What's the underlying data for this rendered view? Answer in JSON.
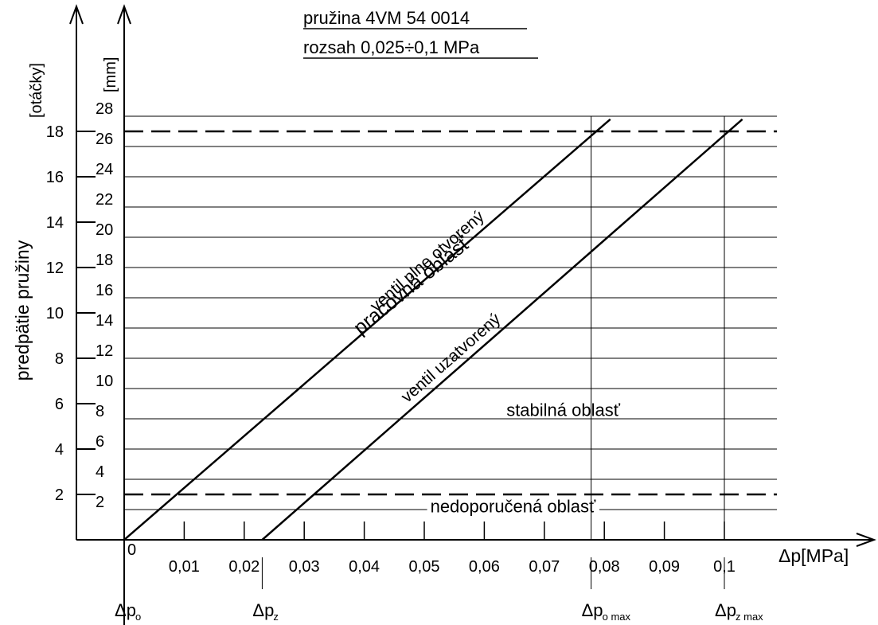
{
  "chart_data": {
    "type": "line",
    "title_lines": [
      "pružina 4VM 54 0014",
      "rozsah 0,025÷0,1 MPa"
    ],
    "xlabel": "Δp[MPa]",
    "ylabel": "predpätie pružiny",
    "y_left_unit": "[otáčky]",
    "y_mm_unit": "[mm]",
    "xlim": [
      0,
      0.1
    ],
    "x_ticks": [
      {
        "value": 0,
        "label": "0"
      },
      {
        "value": 0.01,
        "label": "0,01"
      },
      {
        "value": 0.02,
        "label": "0,02"
      },
      {
        "value": 0.03,
        "label": "0,03"
      },
      {
        "value": 0.04,
        "label": "0,04"
      },
      {
        "value": 0.05,
        "label": "0,05"
      },
      {
        "value": 0.06,
        "label": "0,06"
      },
      {
        "value": 0.07,
        "label": "0,07"
      },
      {
        "value": 0.08,
        "label": "0,08"
      },
      {
        "value": 0.09,
        "label": "0,09"
      },
      {
        "value": 0.1,
        "label": "0,1"
      }
    ],
    "y_otacky_ticks": [
      {
        "value": 2,
        "label": "2"
      },
      {
        "value": 4,
        "label": "4"
      },
      {
        "value": 6,
        "label": "6"
      },
      {
        "value": 8,
        "label": "8"
      },
      {
        "value": 10,
        "label": "10"
      },
      {
        "value": 12,
        "label": "12"
      },
      {
        "value": 14,
        "label": "14"
      },
      {
        "value": 16,
        "label": "16"
      },
      {
        "value": 18,
        "label": "18"
      }
    ],
    "y_mm_ticks": [
      {
        "value": 2,
        "label": "2"
      },
      {
        "value": 4,
        "label": "4"
      },
      {
        "value": 6,
        "label": "6"
      },
      {
        "value": 8,
        "label": "8"
      },
      {
        "value": 10,
        "label": "10"
      },
      {
        "value": 12,
        "label": "12"
      },
      {
        "value": 14,
        "label": "14"
      },
      {
        "value": 16,
        "label": "16"
      },
      {
        "value": 18,
        "label": "18"
      },
      {
        "value": 20,
        "label": "20"
      },
      {
        "value": 22,
        "label": "22"
      },
      {
        "value": 24,
        "label": "24"
      },
      {
        "value": 26,
        "label": "26"
      },
      {
        "value": 28,
        "label": "28"
      }
    ],
    "ylim_mm": [
      0,
      28
    ],
    "ylim_otacky": [
      0,
      18
    ],
    "series": [
      {
        "name": "ventil plne otvorený",
        "x": [
          0,
          0.081
        ],
        "y_mm": [
          0,
          27.8
        ]
      },
      {
        "name": "ventil uzatvorený",
        "x": [
          0.023,
          0.103
        ],
        "y_mm": [
          0,
          27.8
        ]
      }
    ],
    "limits_otacky": [
      2,
      18
    ],
    "regions": [
      {
        "label": "pracovná oblasť",
        "x": 0.045,
        "y_mm": 17
      },
      {
        "label": "stabilná oblasť",
        "x": 0.08,
        "y_mm": 8.6
      },
      {
        "label": "nedoporučená oblasť",
        "x": 0.06,
        "y_mm": 1.6
      }
    ],
    "markers": [
      {
        "label": "Δp",
        "sub": "o",
        "x": 0
      },
      {
        "label": "Δp",
        "sub": "z",
        "x": 0.023
      },
      {
        "label": "Δp",
        "sub": "o max",
        "x": 0.0778
      },
      {
        "label": "Δp",
        "sub": "z max",
        "x": 0.1
      }
    ],
    "grid": "horizontal lines at each mm tick"
  }
}
